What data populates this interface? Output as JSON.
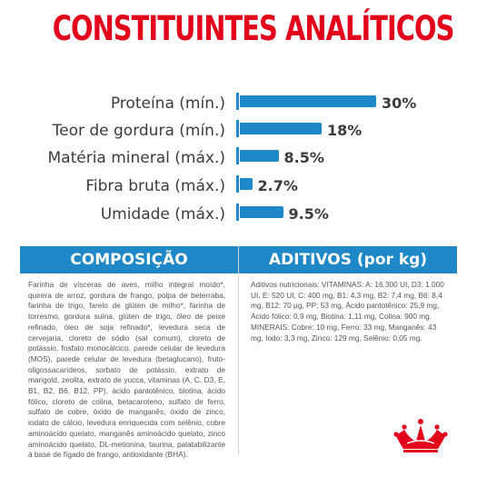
{
  "title": "CONSTITUINTES ANALÍTICOS",
  "analytics": [
    {
      "label": "Proteína (mín.)",
      "value": "30%",
      "percent": 30
    },
    {
      "label": "Teor de gordura (mín.)",
      "value": "18%",
      "percent": 18
    },
    {
      "label": "Matéria mineral (máx.)",
      "value": "8.5%",
      "percent": 8.5
    },
    {
      "label": "Fibra bruta (máx.)",
      "value": "2.7%",
      "percent": 2.7
    },
    {
      "label": "Umidade (máx.)",
      "value": "9.5%",
      "percent": 9.5
    }
  ],
  "composition": {
    "header": "COMPOSIÇÃO",
    "text": "Farinha de vísceras de aves, milho integral moído*, quirera de arroz, gordura de frango, polpa de beterraba, farinha de trigo, farelo de glúten de milho*, farinha de torresmo, gordura suína, glúten de trigo, óleo de peixe refinado, óleo de soja refinado*, levedura seca de cervejaria, cloreto de sódio (sal comum), cloreto de potássio, fosfato monocálcico, parede celular de levedura (MOS), parede celular de levedura (betaglucano), fruto-oligossacarídeos, sorbato de potássio, extrato de marigold, zeolita, extrato de yucca, vitaminas (A, C, D3, E, B1, B2, B6, B12, PP), ácido pantotênico, biotina, ácido fólico, cloreto de colina, betacaroteno, sulfato de ferro, sulfato de cobre, óxido de manganês, óxido de zinco, iodato de cálcio, levedura enriquecida com selênio, cobre aminoácido quelato, manganês aminoácido quelato, zinco aminoácido quelato, DL-metionina, taurina, palatabilizante à base de fígado de frango, antioxidante (BHA)."
  },
  "additives": {
    "header": "ADITIVOS (por kg)",
    "text": "Aditivos nutricionais: VITAMINAS: A: 16.300 UI, D3: 1.000 UI, E: 520 UI, C: 400 mg, B1: 4,3 mg, B2: 7,4 mg, B6: 8,4 mg, B12: 70 µg, PP: 53 mg, Ácido pantotênico: 25,9 mg, Ácido fólico: 0,9 mg, Biotina: 1,11 mg, Colina: 900 mg. MINERAIS: Cobre: 10 mg, Ferro: 33 mg, Manganês: 43 mg, Iodo: 3,3 mg, Zinco: 129 mg, Selênio: 0,05 mg."
  },
  "colors": {
    "accent_red": "#e2001a",
    "bar_blue": "#1e88c8"
  },
  "logo": {
    "name": "royal-canin-crown-logo"
  }
}
